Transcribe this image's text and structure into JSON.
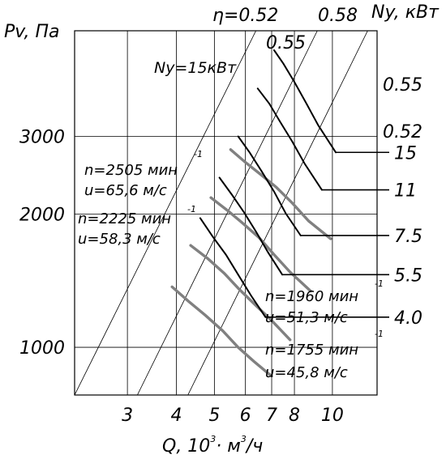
{
  "chart_data": {
    "type": "line",
    "title": "",
    "xlabel": "Q, 10³· м³/ч",
    "xlabel_parts": {
      "q": "Q, 10",
      "e1": "3",
      "dot": "·",
      "m": " м",
      "e2": "3",
      "tail": "/ч"
    },
    "ylabel": "Pv, Па",
    "y2label": "Ny, кВт",
    "x_scale": "log",
    "y_scale": "log",
    "xlim": [
      2.2,
      13.0
    ],
    "ylim": [
      780,
      5200
    ],
    "x_ticks": [
      {
        "value": 3,
        "label": "3"
      },
      {
        "value": 4,
        "label": "4"
      },
      {
        "value": 5,
        "label": "5"
      },
      {
        "value": 6,
        "label": "6"
      },
      {
        "value": 7,
        "label": "7"
      },
      {
        "value": 8,
        "label": "8"
      },
      {
        "value": 10,
        "label": "10"
      }
    ],
    "y_ticks": [
      {
        "value": 1000,
        "label": "1000"
      },
      {
        "value": 2000,
        "label": "2000"
      },
      {
        "value": 3000,
        "label": "3000"
      }
    ],
    "grid": true,
    "efficiency": {
      "label_prefix": "η",
      "lines": [
        {
          "label": "=0.52",
          "x": [
            2.2,
            6.38
          ],
          "y": [
            780,
            5200
          ]
        },
        {
          "label": "0.55",
          "x": [
            3.18,
            9.15
          ],
          "y": [
            780,
            5200
          ]
        },
        {
          "label": "0.58",
          "x": [
            4.28,
            12.3
          ],
          "y": [
            780,
            5200
          ]
        }
      ],
      "right_labels": [
        "0.55",
        "0.52"
      ]
    },
    "pressure_curves": [
      {
        "n_label": "n=2505 мин",
        "n_exp": "-1",
        "u_label": "u=65,6 м/с",
        "x": [
          5.5,
          6.0,
          6.6,
          7.2,
          7.9,
          8.7,
          9.9
        ],
        "y": [
          2800,
          2620,
          2450,
          2300,
          2120,
          1930,
          1760
        ]
      },
      {
        "n_label": "n=2225 мин",
        "n_exp": "-1",
        "u_label": "u=58,3 м/с",
        "x": [
          4.9,
          5.4,
          5.9,
          6.5,
          7.1,
          7.8,
          8.8
        ],
        "y": [
          2180,
          2040,
          1910,
          1770,
          1620,
          1480,
          1340
        ]
      },
      {
        "n_label": "n=1960 мин",
        "n_exp": "-1",
        "u_label": "u=51,3 м/с",
        "x": [
          4.35,
          4.8,
          5.3,
          5.8,
          6.4,
          7.0,
          7.8
        ],
        "y": [
          1700,
          1590,
          1470,
          1350,
          1240,
          1150,
          1040
        ]
      },
      {
        "n_label": "n=1755 мин",
        "n_exp": "-1",
        "u_label": "u=45,8 м/с",
        "x": [
          3.9,
          4.3,
          4.75,
          5.25,
          5.75,
          6.3,
          7.0
        ],
        "y": [
          1370,
          1270,
          1180,
          1090,
          1000,
          930,
          860
        ]
      }
    ],
    "power_curves": [
      {
        "label": "Ny=15кВт",
        "x": [
          7.1,
          7.5,
          8.0,
          8.6,
          9.2,
          10.2
        ],
        "y": [
          4700,
          4380,
          3980,
          3550,
          3180,
          2760
        ]
      },
      {
        "x": [
          6.45,
          6.9,
          7.35,
          7.9,
          8.5,
          9.4
        ],
        "y": [
          3850,
          3560,
          3240,
          2920,
          2600,
          2270
        ]
      },
      {
        "x": [
          5.75,
          6.15,
          6.6,
          7.1,
          7.6,
          8.3
        ],
        "y": [
          3000,
          2760,
          2500,
          2250,
          2010,
          1790
        ]
      },
      {
        "x": [
          5.15,
          5.55,
          5.95,
          6.4,
          6.85,
          7.45
        ],
        "y": [
          2420,
          2210,
          2020,
          1820,
          1640,
          1460
        ]
      },
      {
        "x": [
          4.6,
          4.95,
          5.35,
          5.75,
          6.2,
          6.75
        ],
        "y": [
          1960,
          1780,
          1620,
          1460,
          1310,
          1170
        ]
      }
    ],
    "power_scale": [
      "15",
      "11",
      "7.5",
      "5.5",
      "4.0"
    ]
  }
}
